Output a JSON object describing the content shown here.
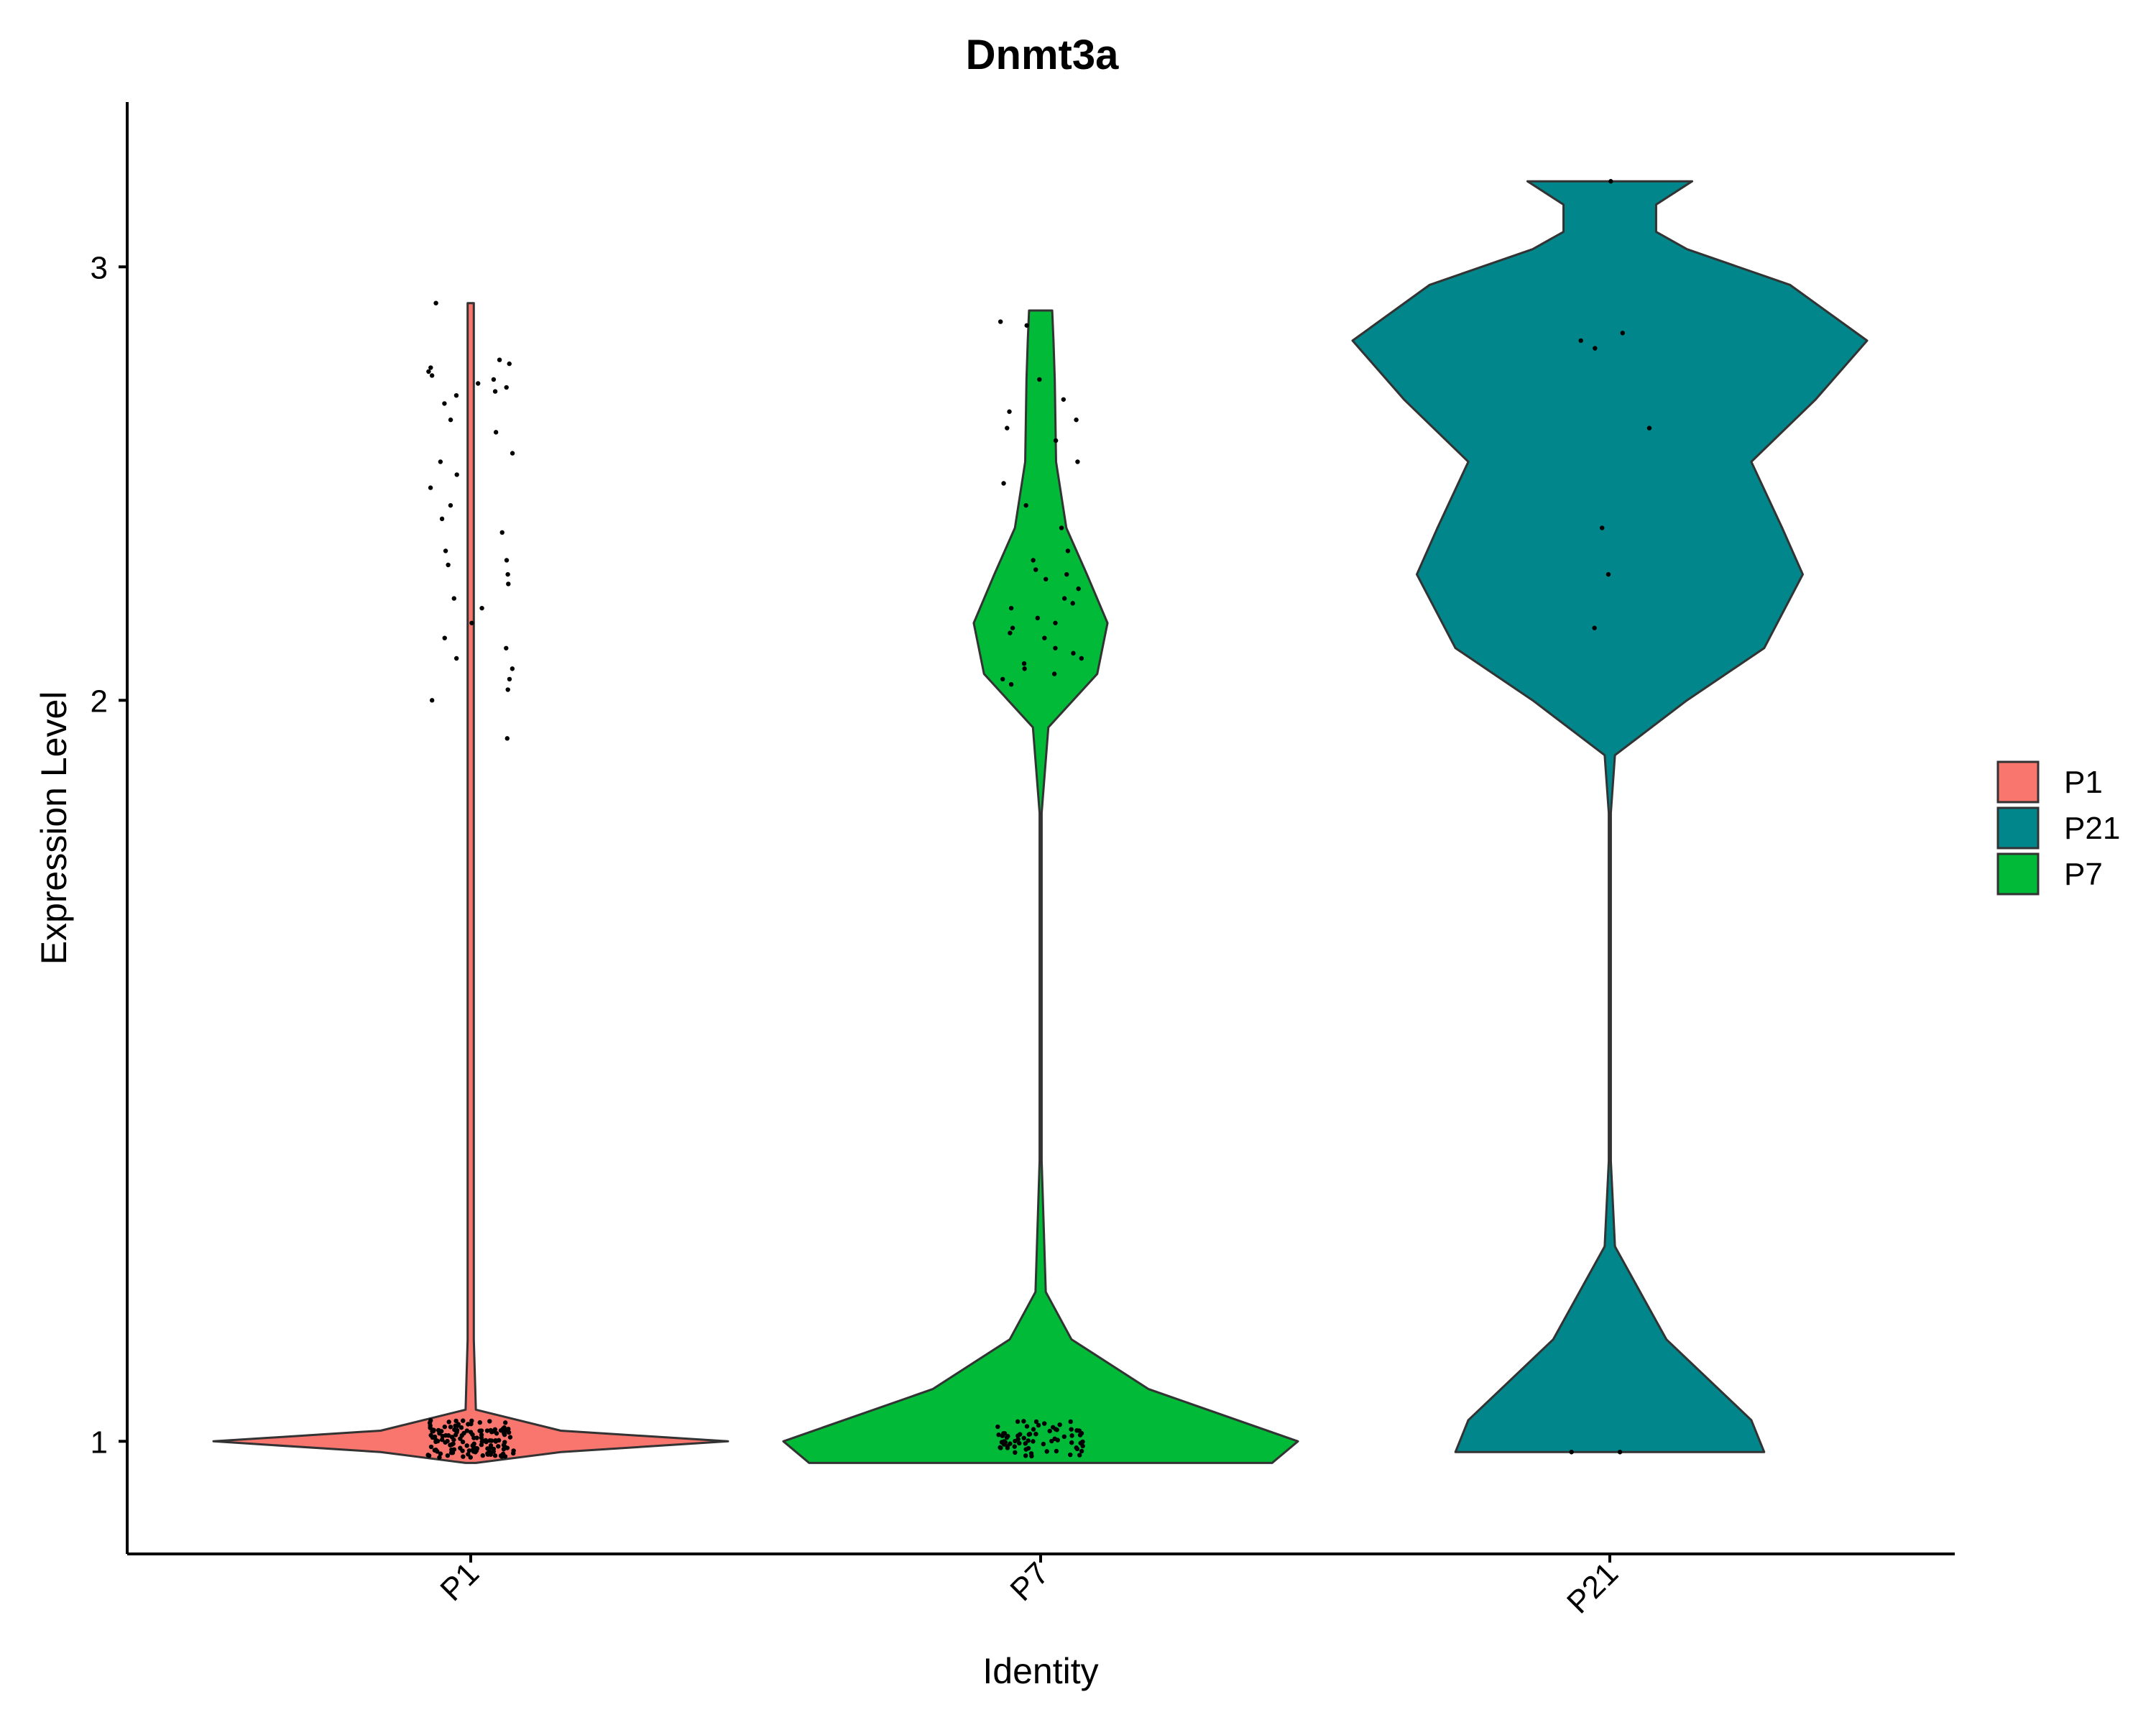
{
  "chart_data": {
    "type": "violin",
    "title": "Dnmt3a",
    "xlabel": "Identity",
    "ylabel": "Expression Level",
    "y_scale": "log",
    "ylim": [
      0.9,
      3.5
    ],
    "yticks": [
      1,
      2,
      3
    ],
    "ytick_labels": [
      "1",
      "2",
      "3"
    ],
    "categories": [
      "P1",
      "P7",
      "P21"
    ],
    "legend": {
      "position": "right",
      "entries": [
        {
          "label": "P1",
          "color": "#F8766D"
        },
        {
          "label": "P21",
          "color": "#00868B"
        },
        {
          "label": "P7",
          "color": "#00BA38"
        }
      ]
    },
    "series": [
      {
        "category": "P1",
        "color": "#F8766D",
        "y_range": [
          0.98,
          2.9
        ],
        "density_profile": [
          [
            0.98,
            0.02
          ],
          [
            0.99,
            0.35
          ],
          [
            1.0,
            1.0
          ],
          [
            1.01,
            0.35
          ],
          [
            1.03,
            0.02
          ],
          [
            1.1,
            0.012
          ],
          [
            2.0,
            0.012
          ],
          [
            2.9,
            0.012
          ]
        ],
        "outliers_shown": [
          2.9,
          2.75,
          2.74,
          2.73,
          2.72,
          2.71,
          2.7,
          2.69,
          2.68,
          2.67,
          2.66,
          2.64,
          2.6,
          2.57,
          2.52,
          2.5,
          2.47,
          2.44,
          2.4,
          2.37,
          2.34,
          2.3,
          2.28,
          2.27,
          2.25,
          2.23,
          2.2,
          2.18,
          2.15,
          2.12,
          2.1,
          2.08,
          2.06,
          2.04,
          2.02,
          2.0,
          1.93
        ],
        "baseline_points": 140
      },
      {
        "category": "P7",
        "color": "#00BA38",
        "y_range": [
          0.98,
          2.88
        ],
        "density_profile": [
          [
            0.98,
            0.9
          ],
          [
            1.0,
            1.0
          ],
          [
            1.05,
            0.42
          ],
          [
            1.1,
            0.12
          ],
          [
            1.15,
            0.02
          ],
          [
            1.3,
            0.004
          ],
          [
            1.8,
            0.004
          ],
          [
            1.95,
            0.03
          ],
          [
            2.05,
            0.22
          ],
          [
            2.15,
            0.26
          ],
          [
            2.25,
            0.18
          ],
          [
            2.35,
            0.1
          ],
          [
            2.5,
            0.06
          ],
          [
            2.7,
            0.055
          ],
          [
            2.8,
            0.05
          ],
          [
            2.88,
            0.045
          ]
        ],
        "outliers_shown": [
          2.85,
          2.84,
          2.7,
          2.65,
          2.62,
          2.6,
          2.58,
          2.55,
          2.5,
          2.45,
          2.4,
          2.35,
          2.3,
          2.28,
          2.26,
          2.25,
          2.24,
          2.22,
          2.2,
          2.19,
          2.18,
          2.16,
          2.15,
          2.14,
          2.13,
          2.12,
          2.1,
          2.09,
          2.08,
          2.07,
          2.06,
          2.05,
          2.04,
          2.03
        ],
        "baseline_points": 70
      },
      {
        "category": "P21",
        "color": "#00868B",
        "y_range": [
          0.99,
          3.25
        ],
        "density_profile": [
          [
            0.99,
            0.6
          ],
          [
            1.02,
            0.55
          ],
          [
            1.1,
            0.22
          ],
          [
            1.2,
            0.02
          ],
          [
            1.3,
            0.004
          ],
          [
            1.8,
            0.004
          ],
          [
            1.9,
            0.02
          ],
          [
            2.0,
            0.3
          ],
          [
            2.1,
            0.6
          ],
          [
            2.25,
            0.75
          ],
          [
            2.35,
            0.67
          ],
          [
            2.5,
            0.55
          ],
          [
            2.65,
            0.8
          ],
          [
            2.8,
            1.0
          ],
          [
            2.95,
            0.7
          ],
          [
            3.05,
            0.3
          ],
          [
            3.1,
            0.18
          ],
          [
            3.18,
            0.18
          ],
          [
            3.25,
            0.32
          ]
        ],
        "outliers_shown": [
          3.25,
          2.82,
          2.8,
          2.78,
          2.58,
          2.35,
          2.25,
          2.14,
          0.99,
          0.99
        ]
      }
    ]
  }
}
